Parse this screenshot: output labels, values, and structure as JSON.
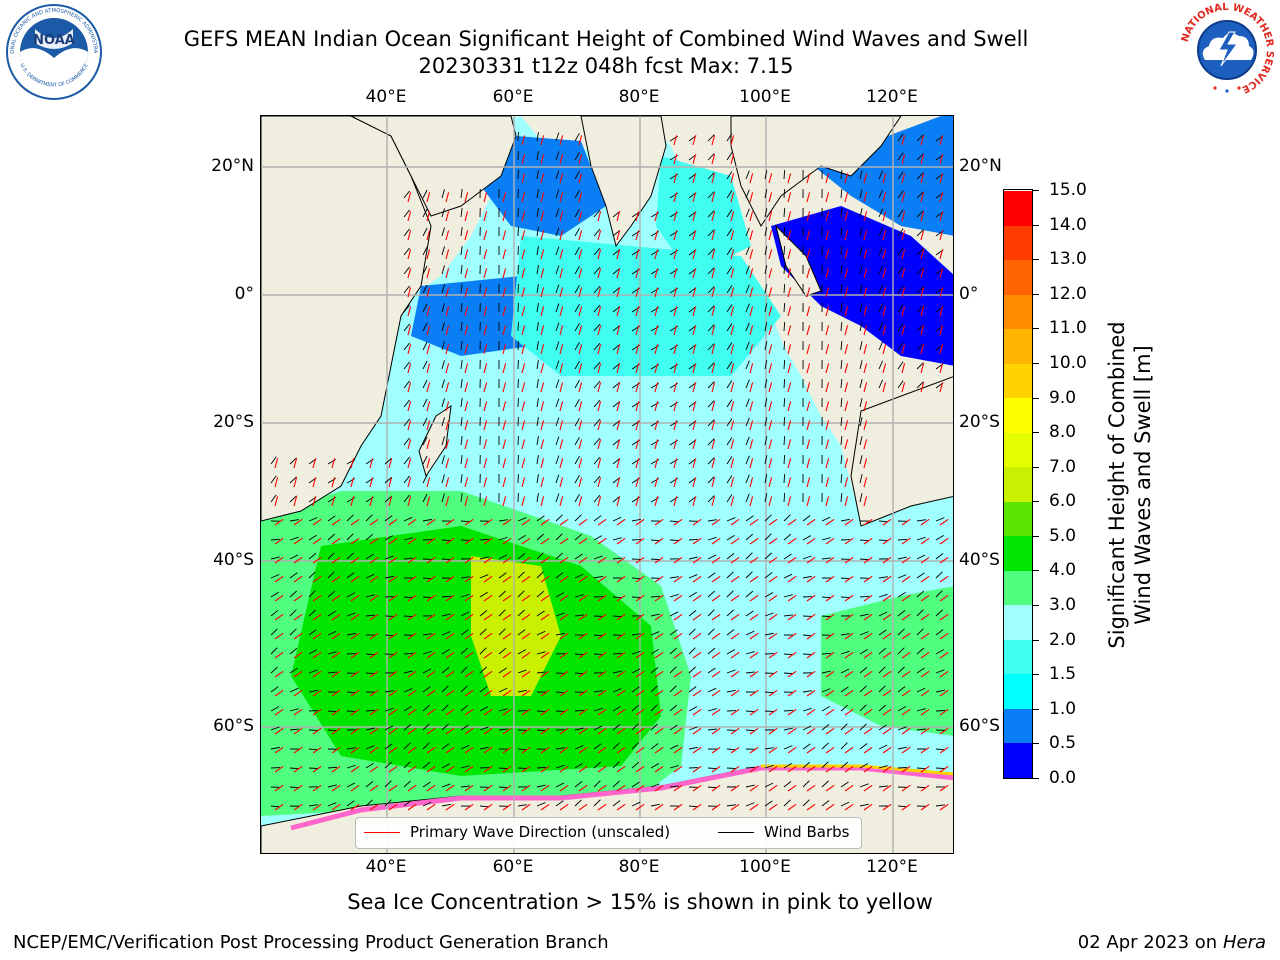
{
  "header": {
    "title_line1": "GEFS MEAN Indian Ocean Significant Height of Combined Wind Waves and Swell",
    "title_line2": "20230331 t12z 048h fcst   Max: 7.15"
  },
  "logos": {
    "noaa": {
      "text": "NOAA",
      "ring_text": "NATIONAL OCEANIC AND ATMOSPHERIC ADMINISTRATION",
      "bottom_text": "U.S. DEPARTMENT OF COMMERCE",
      "color": "#1a5aa6"
    },
    "nws": {
      "ring_text": "NATIONAL WEATHER SERVICE",
      "color": "#e0281f"
    }
  },
  "map": {
    "top_lon_labels": [
      "40°E",
      "60°E",
      "80°E",
      "100°E",
      "120°E"
    ],
    "bottom_lon_labels": [
      "40°E",
      "60°E",
      "80°E",
      "100°E",
      "120°E"
    ],
    "left_lat_labels": [
      "20°N",
      "0°",
      "20°S",
      "40°S",
      "60°S"
    ],
    "right_lat_labels": [
      "20°N",
      "0°",
      "20°S",
      "40°S",
      "60°S"
    ],
    "land_color": "#f0efdf",
    "grid_color": "#b0b0b0"
  },
  "legend": {
    "primary_wave": "Primary Wave Direction (unscaled)",
    "wind_barbs": "Wind Barbs",
    "primary_wave_color": "#ff0000",
    "wind_barbs_color": "#000000"
  },
  "colorbar": {
    "label_line1": "Significant Height of Combined",
    "label_line2": "Wind Waves and Swell [m]",
    "ticks": [
      "15.0",
      "14.0",
      "13.0",
      "12.0",
      "11.0",
      "10.0",
      "9.0",
      "8.0",
      "7.0",
      "6.0",
      "5.0",
      "4.0",
      "3.0",
      "2.0",
      "1.5",
      "1.0",
      "0.5",
      "0.0"
    ],
    "colors_bottom_to_top": [
      "#0000ff",
      "#0a7ff5",
      "#00ffff",
      "#40fff0",
      "#a0ffff",
      "#50ff80",
      "#00e600",
      "#5ae600",
      "#c8f000",
      "#e6ff00",
      "#ffff00",
      "#ffd200",
      "#ffb400",
      "#ff8c00",
      "#ff6400",
      "#ff3c00",
      "#ff0000"
    ]
  },
  "footer": {
    "caption": "Sea Ice Concentration > 15% is shown in pink to yellow",
    "credit": "NCEP/EMC/Verification Post Processing Product Generation Branch",
    "date_prefix": "02 Apr 2023 on ",
    "host": "Hera"
  }
}
